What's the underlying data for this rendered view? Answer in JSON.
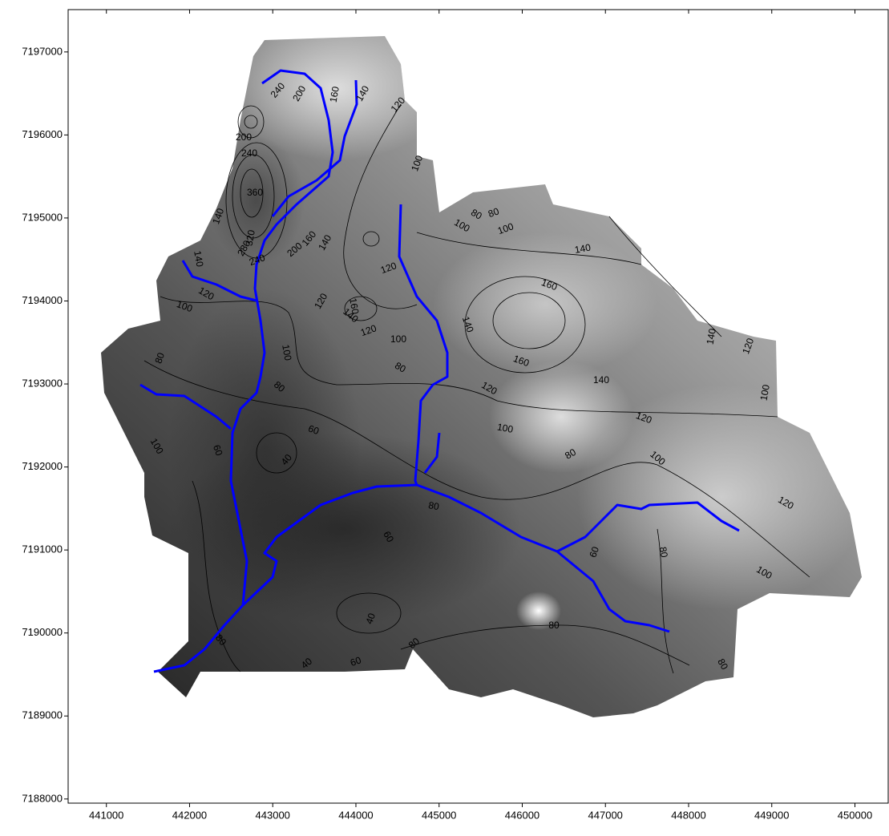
{
  "map": {
    "xlim": [
      440540,
      450400
    ],
    "ylim": [
      7187950,
      7197510
    ],
    "xticks": [
      441000,
      442000,
      443000,
      444000,
      445000,
      446000,
      447000,
      448000,
      449000,
      450000
    ],
    "yticks": [
      7188000,
      7189000,
      7190000,
      7191000,
      7192000,
      7193000,
      7194000,
      7195000,
      7196000,
      7197000
    ],
    "contour_labels": [
      "240",
      "200",
      "160",
      "140",
      "120",
      "200",
      "240",
      "360",
      "100",
      "140",
      "100",
      "80",
      "80",
      "100",
      "320",
      "280",
      "240",
      "200",
      "160",
      "140",
      "140",
      "120",
      "100",
      "120",
      "140",
      "160",
      "120",
      "160",
      "140",
      "120",
      "100",
      "80",
      "100",
      "80",
      "140",
      "140",
      "120",
      "160",
      "140",
      "120",
      "100",
      "120",
      "80",
      "60",
      "100",
      "100",
      "60",
      "40",
      "80",
      "100",
      "80",
      "120",
      "60",
      "60",
      "80",
      "100",
      "40",
      "80",
      "80",
      "80",
      "40",
      "60",
      "80"
    ]
  }
}
